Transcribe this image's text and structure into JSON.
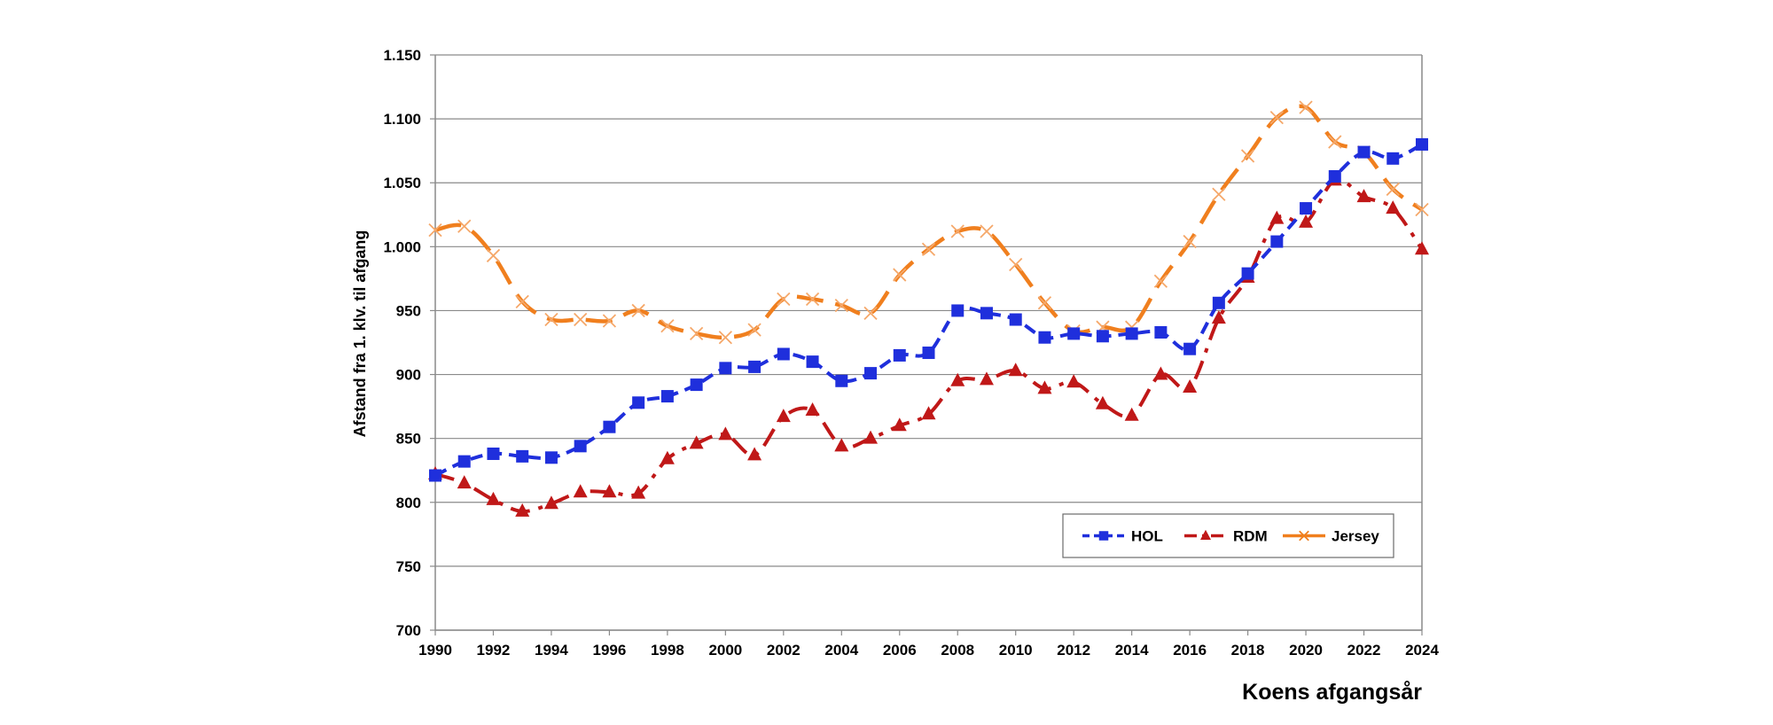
{
  "chart_data": {
    "type": "line",
    "title": "",
    "xlabel": "Koens afgangsår",
    "ylabel": "Afstand fra 1. klv. til afgang",
    "xlim": [
      1990,
      2024
    ],
    "ylim": [
      700,
      1150
    ],
    "y_ticks": [
      700,
      750,
      800,
      850,
      900,
      950,
      1000,
      1050,
      1100,
      1150
    ],
    "y_tick_labels": [
      "700",
      "750",
      "800",
      "850",
      "900",
      "950",
      "1.000",
      "1.050",
      "1.100",
      "1.150"
    ],
    "x_ticks": [
      1990,
      1992,
      1994,
      1996,
      1998,
      2000,
      2002,
      2004,
      2006,
      2008,
      2010,
      2012,
      2014,
      2016,
      2018,
      2020,
      2022,
      2024
    ],
    "grid": "horizontal",
    "legend_position": "bottom-right",
    "x": [
      1990,
      1991,
      1992,
      1993,
      1994,
      1995,
      1996,
      1997,
      1998,
      1999,
      2000,
      2001,
      2002,
      2003,
      2004,
      2005,
      2006,
      2007,
      2008,
      2009,
      2010,
      2011,
      2012,
      2013,
      2014,
      2015,
      2016,
      2017,
      2018,
      2019,
      2020,
      2021,
      2022,
      2023,
      2024
    ],
    "series": [
      {
        "name": "HOL",
        "color": "#1f2fdc",
        "marker": "square",
        "values": [
          821,
          832,
          838,
          836,
          835,
          844,
          859,
          878,
          883,
          892,
          905,
          906,
          916,
          910,
          895,
          901,
          915,
          917,
          950,
          948,
          943,
          929,
          932,
          930,
          932,
          933,
          920,
          956,
          979,
          1004,
          1030,
          1055,
          1074,
          1069,
          1080
        ]
      },
      {
        "name": "RDM",
        "color": "#c01818",
        "marker": "triangle",
        "values": [
          822,
          815,
          802,
          793,
          799,
          808,
          808,
          807,
          834,
          846,
          853,
          837,
          867,
          872,
          844,
          850,
          860,
          869,
          895,
          896,
          903,
          889,
          894,
          877,
          868,
          900,
          890,
          944,
          976,
          1022,
          1019,
          1052,
          1039,
          1030,
          998
        ]
      },
      {
        "name": "Jersey",
        "color": "#f07f1e",
        "marker": "x",
        "values": [
          1013,
          1016,
          993,
          957,
          943,
          943,
          942,
          950,
          938,
          932,
          929,
          935,
          959,
          959,
          954,
          948,
          978,
          998,
          1012,
          1012,
          986,
          956,
          934,
          937,
          937,
          973,
          1004,
          1041,
          1071,
          1101,
          1109,
          1082,
          1074,
          1045,
          1029
        ]
      }
    ]
  }
}
